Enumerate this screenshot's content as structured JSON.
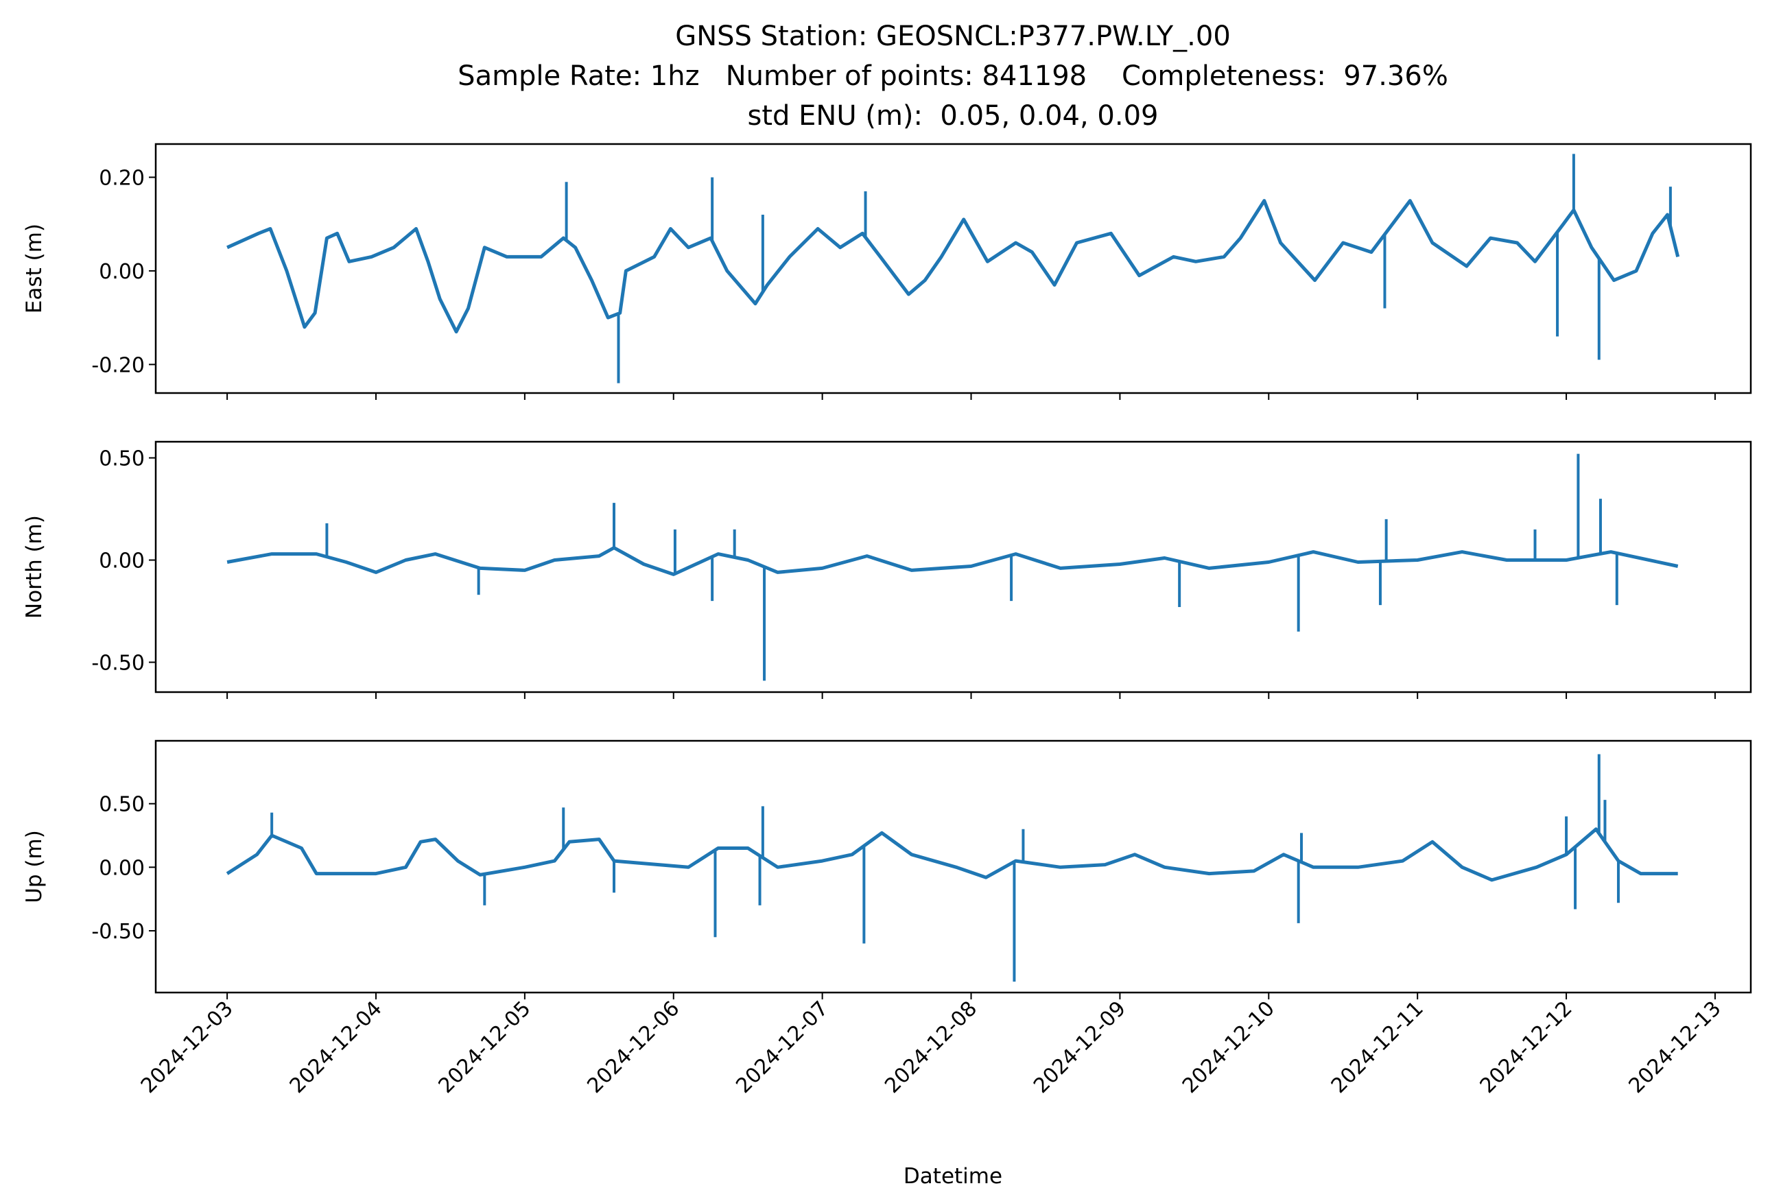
{
  "chart_data": {
    "type": "line",
    "title": [
      "GNSS Station: GEOSNCL:P377.PW.LY_.00",
      "Sample Rate: 1hz   Number of points: 841198    Completeness:  97.36%",
      "std ENU (m):  0.05, 0.04, 0.09"
    ],
    "xlabel": "Datetime",
    "x_start": "2024-12-03",
    "x_ticks": [
      "2024-12-03",
      "2024-12-04",
      "2024-12-05",
      "2024-12-06",
      "2024-12-07",
      "2024-12-08",
      "2024-12-09",
      "2024-12-10",
      "2024-12-11",
      "2024-12-12",
      "2024-12-13"
    ],
    "x_unit": "days since 2024-12-03",
    "xlim": [
      -0.48,
      10.24
    ],
    "color": "#1f77b4",
    "panels": [
      {
        "name": "East",
        "ylabel": "East (m)",
        "ylim": [
          -0.261,
          0.271
        ],
        "yticks": [
          0.2,
          0.0,
          -0.2
        ],
        "ytick_labels": [
          "0.20",
          "0.00",
          "-0.20"
        ],
        "t": [
          0,
          0.21,
          0.29,
          0.4,
          0.52,
          0.59,
          0.67,
          0.74,
          0.82,
          0.97,
          1.12,
          1.27,
          1.35,
          1.43,
          1.54,
          1.62,
          1.73,
          1.88,
          2.11,
          2.26,
          2.34,
          2.45,
          2.56,
          2.64,
          2.68,
          2.87,
          2.98,
          3.1,
          3.25,
          3.36,
          3.55,
          3.63,
          3.78,
          3.97,
          4.12,
          4.27,
          4.39,
          4.58,
          4.69,
          4.8,
          4.95,
          5.11,
          5.3,
          5.41,
          5.56,
          5.71,
          5.94,
          6.13,
          6.36,
          6.51,
          6.7,
          6.81,
          6.97,
          7.08,
          7.31,
          7.5,
          7.69,
          7.95,
          8.1,
          8.33,
          8.49,
          8.67,
          8.79,
          8.98,
          9.05,
          9.17,
          9.32,
          9.47,
          9.58,
          9.68,
          9.75
        ],
        "v": [
          0.05,
          0.08,
          0.09,
          0.0,
          -0.12,
          -0.09,
          0.07,
          0.08,
          0.02,
          0.03,
          0.05,
          0.09,
          0.02,
          -0.06,
          -0.13,
          -0.08,
          0.05,
          0.03,
          0.03,
          0.07,
          0.05,
          -0.02,
          -0.1,
          -0.09,
          0.0,
          0.03,
          0.09,
          0.05,
          0.07,
          0.0,
          -0.07,
          -0.03,
          0.03,
          0.09,
          0.05,
          0.08,
          0.03,
          -0.05,
          -0.02,
          0.03,
          0.11,
          0.02,
          0.06,
          0.04,
          -0.03,
          0.06,
          0.08,
          -0.01,
          0.03,
          0.02,
          0.03,
          0.07,
          0.15,
          0.06,
          -0.02,
          0.06,
          0.04,
          0.15,
          0.06,
          0.01,
          0.07,
          0.06,
          0.02,
          0.1,
          0.13,
          0.05,
          -0.02,
          0.0,
          0.08,
          0.12,
          0.03
        ],
        "spikes": [
          [
            2.28,
            0.19
          ],
          [
            2.63,
            -0.24
          ],
          [
            3.26,
            0.2
          ],
          [
            3.6,
            0.12
          ],
          [
            4.29,
            0.17
          ],
          [
            7.78,
            -0.08
          ],
          [
            8.94,
            -0.14
          ],
          [
            9.05,
            0.25
          ],
          [
            9.22,
            -0.19
          ],
          [
            9.7,
            0.18
          ]
        ]
      },
      {
        "name": "North",
        "ylabel": "North (m)",
        "ylim": [
          -0.646,
          0.579
        ],
        "yticks": [
          0.5,
          0.0,
          -0.5
        ],
        "ytick_labels": [
          "0.50",
          "0.00",
          "-0.50"
        ],
        "t": [
          0,
          0.3,
          0.6,
          0.8,
          1.0,
          1.2,
          1.4,
          1.7,
          2.0,
          2.2,
          2.5,
          2.6,
          2.8,
          3.0,
          3.3,
          3.5,
          3.7,
          4.0,
          4.3,
          4.6,
          5.0,
          5.3,
          5.6,
          6.0,
          6.3,
          6.6,
          7.0,
          7.3,
          7.6,
          8.0,
          8.3,
          8.6,
          9.0,
          9.3,
          9.75
        ],
        "v": [
          -0.01,
          0.03,
          0.03,
          -0.01,
          -0.06,
          0.0,
          0.03,
          -0.04,
          -0.05,
          0.0,
          0.02,
          0.06,
          -0.02,
          -0.07,
          0.03,
          0.0,
          -0.06,
          -0.04,
          0.02,
          -0.05,
          -0.03,
          0.03,
          -0.04,
          -0.02,
          0.01,
          -0.04,
          -0.01,
          0.04,
          -0.01,
          0.0,
          0.04,
          0.0,
          0.0,
          0.04,
          -0.03
        ],
        "spikes": [
          [
            0.67,
            0.18
          ],
          [
            1.69,
            -0.17
          ],
          [
            2.6,
            0.28
          ],
          [
            3.01,
            0.15
          ],
          [
            3.26,
            -0.2
          ],
          [
            3.41,
            0.15
          ],
          [
            3.61,
            -0.59
          ],
          [
            5.27,
            -0.2
          ],
          [
            6.4,
            -0.23
          ],
          [
            7.2,
            -0.35
          ],
          [
            7.79,
            0.2
          ],
          [
            7.75,
            -0.22
          ],
          [
            8.79,
            0.15
          ],
          [
            9.08,
            0.52
          ],
          [
            9.23,
            0.3
          ],
          [
            9.34,
            -0.22
          ]
        ]
      },
      {
        "name": "Up",
        "ylabel": "Up (m)",
        "ylim": [
          -0.986,
          0.995
        ],
        "yticks": [
          0.5,
          0.0,
          -0.5
        ],
        "ytick_labels": [
          "0.50",
          "0.00",
          "-0.50"
        ],
        "t": [
          0,
          0.2,
          0.3,
          0.5,
          0.6,
          0.8,
          1.0,
          1.2,
          1.3,
          1.4,
          1.55,
          1.7,
          2.0,
          2.2,
          2.3,
          2.5,
          2.6,
          2.9,
          3.1,
          3.3,
          3.5,
          3.7,
          4.0,
          4.2,
          4.4,
          4.6,
          4.9,
          5.1,
          5.3,
          5.6,
          5.9,
          6.1,
          6.3,
          6.6,
          6.9,
          7.1,
          7.3,
          7.6,
          7.9,
          8.1,
          8.3,
          8.5,
          8.8,
          9.0,
          9.2,
          9.35,
          9.5,
          9.75
        ],
        "v": [
          -0.05,
          0.1,
          0.25,
          0.15,
          -0.05,
          -0.05,
          -0.05,
          0.0,
          0.2,
          0.22,
          0.05,
          -0.06,
          0.0,
          0.05,
          0.2,
          0.22,
          0.05,
          0.02,
          0.0,
          0.15,
          0.15,
          0.0,
          0.05,
          0.1,
          0.27,
          0.1,
          0.0,
          -0.08,
          0.05,
          0.0,
          0.02,
          0.1,
          0.0,
          -0.05,
          -0.03,
          0.1,
          0.0,
          0.0,
          0.05,
          0.2,
          0.0,
          -0.1,
          0.0,
          0.1,
          0.3,
          0.05,
          -0.05,
          -0.05
        ],
        "spikes": [
          [
            0.3,
            0.43
          ],
          [
            1.73,
            -0.3
          ],
          [
            2.26,
            0.47
          ],
          [
            2.6,
            -0.2
          ],
          [
            3.28,
            -0.55
          ],
          [
            3.6,
            0.48
          ],
          [
            3.58,
            -0.3
          ],
          [
            4.28,
            -0.6
          ],
          [
            5.29,
            -0.9
          ],
          [
            5.35,
            0.3
          ],
          [
            7.2,
            -0.44
          ],
          [
            7.22,
            0.27
          ],
          [
            9.0,
            0.4
          ],
          [
            9.06,
            -0.33
          ],
          [
            9.22,
            0.89
          ],
          [
            9.26,
            0.53
          ],
          [
            9.35,
            -0.28
          ]
        ]
      }
    ]
  }
}
